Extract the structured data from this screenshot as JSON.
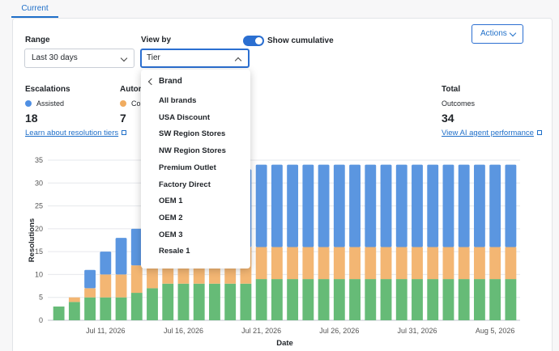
{
  "tabs": {
    "current": "Current"
  },
  "filters": {
    "range_label": "Range",
    "range_value": "Last 30 days",
    "viewby_label": "View by",
    "viewby_value": "Tier",
    "cumulative_label": "Show cumulative",
    "cumulative_on": true,
    "actions_label": "Actions"
  },
  "metrics": {
    "escalations": {
      "title": "Escalations",
      "legend": "Assisted",
      "value": "18",
      "color": "#4f8fe3",
      "link": "Learn about resolution tiers"
    },
    "automated": {
      "title": "Autom",
      "legend": "Co",
      "value": "7",
      "color": "#f0ac60"
    },
    "total": {
      "title": "Total",
      "legend": "Outcomes",
      "value": "34",
      "link": "View AI agent performance"
    }
  },
  "dropdown": {
    "header": "Brand",
    "items": [
      "All brands",
      "USA Discount",
      "SW Region Stores",
      "NW Region Stores",
      "Premium Outlet",
      "Factory Direct",
      "OEM 1",
      "OEM 2",
      "OEM 3",
      "Resale 1"
    ]
  },
  "chart_data": {
    "type": "bar",
    "stacked": true,
    "xlabel": "Date",
    "ylabel": "Resolutions",
    "ylim": [
      0,
      35
    ],
    "yticks": [
      0,
      5,
      10,
      15,
      20,
      25,
      30,
      35
    ],
    "xtick_labels": [
      "Jul 11, 2026",
      "Jul 16, 2026",
      "Jul 21, 2026",
      "Jul 26, 2026",
      "Jul 31, 2026",
      "Aug 5, 2026"
    ],
    "xtick_index": [
      3,
      8,
      13,
      18,
      23,
      28
    ],
    "series": [
      {
        "color": "#66bb77",
        "values": [
          3,
          4,
          5,
          5,
          5,
          6,
          7,
          8,
          8,
          8,
          8,
          8,
          8,
          9,
          9,
          9,
          9,
          9,
          9,
          9,
          9,
          9,
          9,
          9,
          9,
          9,
          9,
          9,
          9,
          9
        ]
      },
      {
        "color": "#f3b673",
        "values": [
          0,
          1,
          2,
          5,
          5,
          6,
          9,
          8,
          8,
          8,
          8,
          8,
          8,
          7,
          7,
          7,
          7,
          7,
          7,
          7,
          7,
          7,
          7,
          7,
          7,
          7,
          7,
          7,
          7,
          7
        ]
      },
      {
        "color": "#5b96e0",
        "values": [
          0,
          0,
          4,
          5,
          8,
          8,
          2,
          10,
          12,
          14,
          16,
          16,
          17,
          18,
          18,
          18,
          18,
          18,
          18,
          18,
          18,
          18,
          18,
          18,
          18,
          18,
          18,
          18,
          18,
          18
        ]
      }
    ]
  }
}
